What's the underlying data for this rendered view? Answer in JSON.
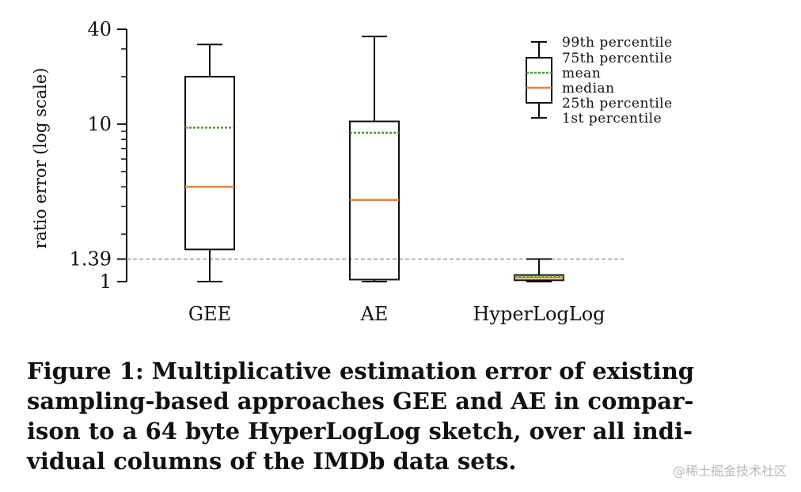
{
  "chart_data": {
    "type": "box",
    "y_scale": "log",
    "ylabel": "ratio error (log scale)",
    "ylim": [
      1,
      40
    ],
    "yticks": [
      {
        "value": 1,
        "label": "1"
      },
      {
        "value": 1.39,
        "label": "1.39"
      },
      {
        "value": 10,
        "label": "10"
      },
      {
        "value": 40,
        "label": "40"
      }
    ],
    "minor_ticks": [
      2,
      3,
      4,
      5,
      6,
      7,
      8,
      9,
      20,
      30
    ],
    "reference_line": {
      "value": 1.39,
      "style": "dashed"
    },
    "categories": [
      "GEE",
      "AE",
      "HyperLogLog"
    ],
    "boxes": [
      {
        "name": "GEE",
        "p1": 1.0,
        "p25": 1.6,
        "median": 4.0,
        "mean": 9.5,
        "p75": 20.0,
        "p99": 32.0
      },
      {
        "name": "AE",
        "p1": 1.0,
        "p25": 1.03,
        "median": 3.3,
        "mean": 8.8,
        "p75": 10.4,
        "p99": 36.0
      },
      {
        "name": "HyperLogLog",
        "p1": 1.0,
        "p25": 1.02,
        "median": 1.06,
        "mean": 1.08,
        "p75": 1.1,
        "p99": 1.39
      }
    ],
    "legend": {
      "placement": "top-right",
      "entries": [
        "99th percentile",
        "75th percentile",
        "mean",
        "median",
        "25th percentile",
        "1st percentile"
      ]
    },
    "colors": {
      "median": "#e8823a",
      "mean": "#4e9a3a",
      "box": "#111111",
      "reference": "#888888"
    }
  },
  "caption": {
    "lines": [
      "Figure 1: Multiplicative estimation error of existing",
      "sampling-based approaches GEE and AE in compar-",
      "ison to a 64 byte HyperLogLog sketch, over all indi-",
      "vidual columns of the IMDb data sets."
    ]
  },
  "watermark": "@稀土掘金技术社区"
}
